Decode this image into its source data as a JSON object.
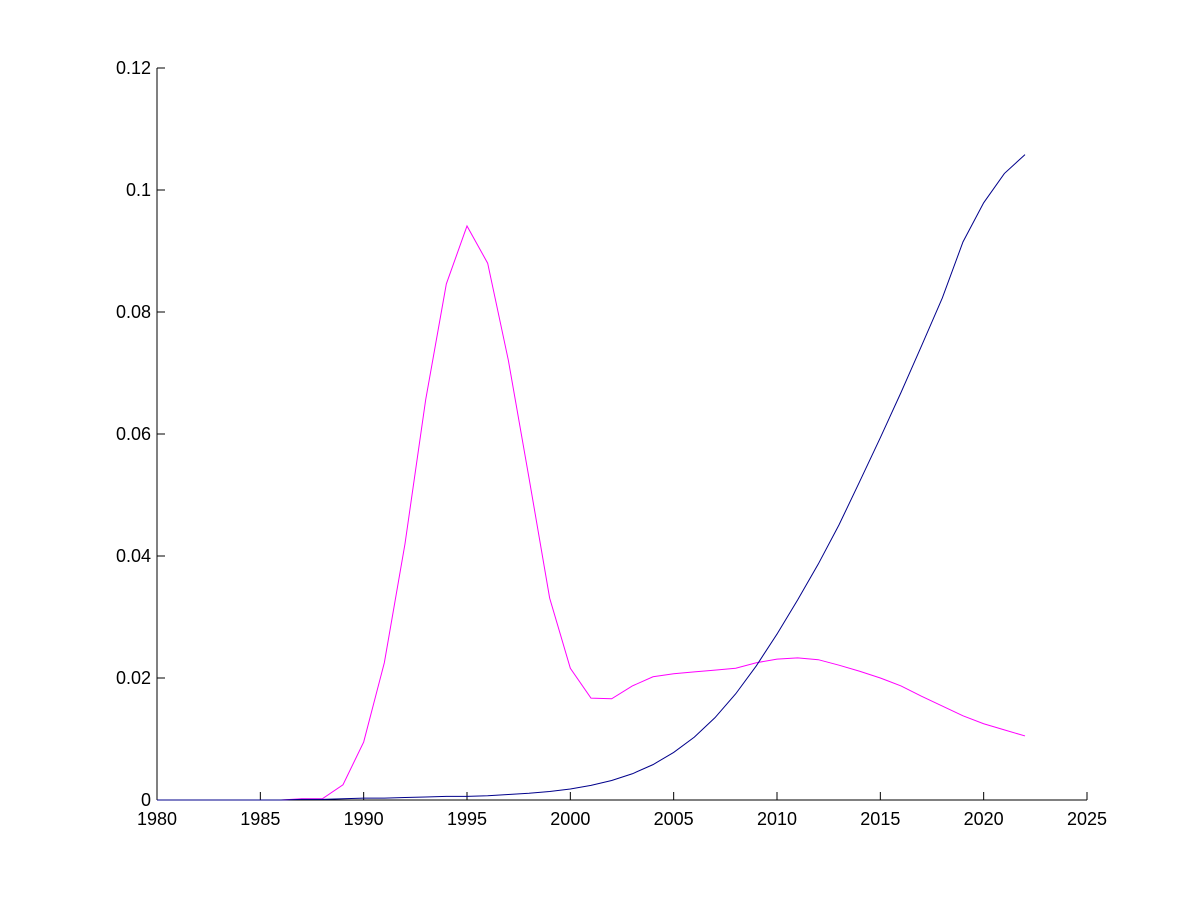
{
  "chart_data": {
    "type": "line",
    "x": [
      1980,
      1981,
      1982,
      1983,
      1984,
      1985,
      1986,
      1987,
      1988,
      1989,
      1990,
      1991,
      1992,
      1993,
      1994,
      1995,
      1996,
      1997,
      1998,
      1999,
      2000,
      2001,
      2002,
      2003,
      2004,
      2005,
      2006,
      2007,
      2008,
      2009,
      2010,
      2011,
      2012,
      2013,
      2014,
      2015,
      2016,
      2017,
      2018,
      2019,
      2020,
      2021,
      2022
    ],
    "series": [
      {
        "color": "#ff00ff",
        "values": [
          0,
          0,
          0,
          0,
          0,
          0,
          0,
          0.0002,
          0.0002,
          0.0025,
          0.0095,
          0.0225,
          0.042,
          0.0656,
          0.0846,
          0.0941,
          0.088,
          0.0721,
          0.0528,
          0.0331,
          0.0216,
          0.0167,
          0.0166,
          0.0187,
          0.0202,
          0.0207,
          0.021,
          0.0213,
          0.0216,
          0.0225,
          0.0231,
          0.0233,
          0.023,
          0.0221,
          0.0211,
          0.02,
          0.0187,
          0.017,
          0.0154,
          0.0138,
          0.0125,
          0.0115,
          0.0105
        ]
      },
      {
        "color": "#00008b",
        "values": [
          0,
          0,
          0,
          0,
          0,
          0,
          0,
          0.0001,
          0.0001,
          0.0002,
          0.0003,
          0.0003,
          0.0004,
          0.0005,
          0.0006,
          0.0006,
          0.0007,
          0.0009,
          0.0011,
          0.0014,
          0.0018,
          0.0024,
          0.0032,
          0.0043,
          0.0058,
          0.0078,
          0.0103,
          0.0135,
          0.0174,
          0.022,
          0.0272,
          0.0328,
          0.0387,
          0.0451,
          0.0522,
          0.0594,
          0.0668,
          0.0745,
          0.0823,
          0.0915,
          0.0979,
          0.1027,
          0.1058
        ]
      }
    ],
    "xlim": [
      1980,
      2025
    ],
    "xticks": [
      1980,
      1985,
      1990,
      1995,
      2000,
      2005,
      2010,
      2015,
      2020,
      2025
    ],
    "ylim": [
      0,
      0.12
    ],
    "yticks": [
      0,
      0.02,
      0.04,
      0.06,
      0.08,
      0.1,
      0.12
    ]
  }
}
